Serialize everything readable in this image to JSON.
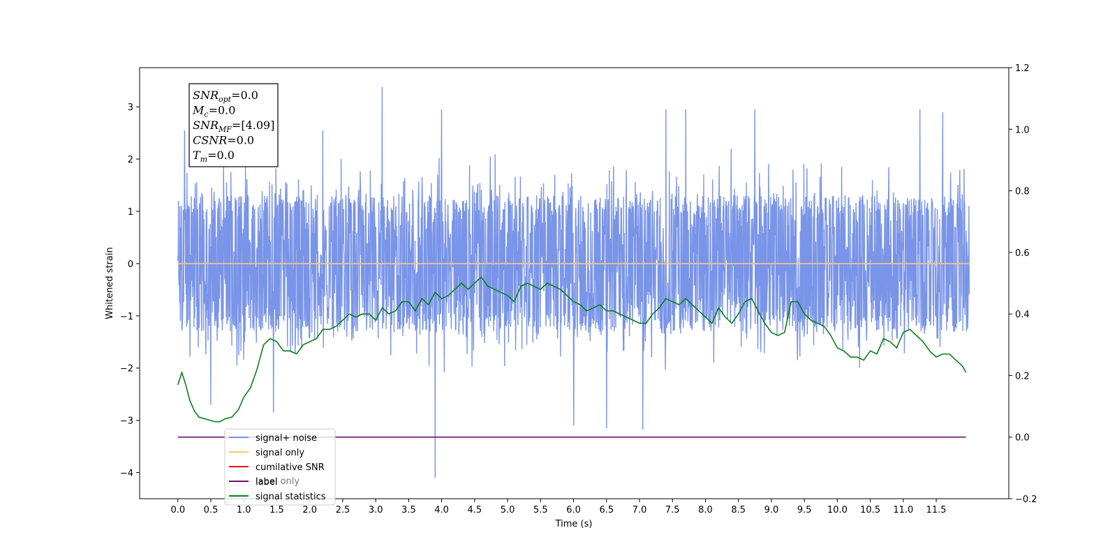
{
  "chart_data": {
    "type": "line",
    "title": "",
    "xlabel": "Time (s)",
    "ylabel": "Whitened strain",
    "xlim": [
      -0.58,
      12.6
    ],
    "ylim": [
      -4.5,
      3.75
    ],
    "y2lim": [
      -0.2,
      1.2
    ],
    "x_ticks": [
      "0.0",
      "0.5",
      "1.0",
      "1.5",
      "2.0",
      "2.5",
      "3.0",
      "3.5",
      "4.0",
      "4.5",
      "5.0",
      "5.5",
      "6.0",
      "6.5",
      "7.0",
      "7.5",
      "8.0",
      "8.5",
      "9.0",
      "9.5",
      "10.0",
      "10.5",
      "11.0",
      "11.5"
    ],
    "y_ticks": [
      "3",
      "2",
      "1",
      "0",
      "−1",
      "−2",
      "−3",
      "−4"
    ],
    "y2_ticks": [
      "1.2",
      "1.0",
      "0.8",
      "0.6",
      "0.4",
      "0.2",
      "0.0",
      "−0.2"
    ],
    "annotation": [
      {
        "var": "SNR",
        "sub": "opt",
        "value": "=0.0"
      },
      {
        "var": "M",
        "sub": "c",
        "value": "=0.0"
      },
      {
        "var": "SNR",
        "sub": "MF",
        "value": "=[4.09]"
      },
      {
        "var": "CSNR",
        "sub": "",
        "value": "=0.0"
      },
      {
        "var": "T",
        "sub": "m",
        "value": "=0.0"
      }
    ],
    "legend_position": "lower-left",
    "legend": [
      {
        "label": "signal+ noise",
        "color": "#7994e8"
      },
      {
        "label": "signal only",
        "color": "#ffc77a"
      },
      {
        "label": "cumilative SNR",
        "color": "#ff0000"
      },
      {
        "label": "label",
        "color": "#6a0f6e"
      },
      {
        "label": "signal statistics",
        "color": "#0a7f1a"
      }
    ],
    "hidden_legend_text": "label only",
    "series": [
      {
        "name": "signal+ noise",
        "axis": "left",
        "kind": "noise",
        "x_range": [
          0.0,
          12.0
        ],
        "band": [
          -1.3,
          1.3
        ],
        "extremes": [
          [
            0.1,
            2.55
          ],
          [
            0.5,
            -2.7
          ],
          [
            1.45,
            -2.85
          ],
          [
            2.2,
            2.55
          ],
          [
            3.1,
            3.38
          ],
          [
            3.9,
            -4.1
          ],
          [
            4.0,
            2.95
          ],
          [
            6.0,
            -3.1
          ],
          [
            6.5,
            -3.15
          ],
          [
            7.05,
            -3.18
          ],
          [
            7.4,
            2.95
          ],
          [
            7.7,
            2.95
          ],
          [
            8.75,
            2.95
          ],
          [
            11.25,
            2.95
          ],
          [
            11.6,
            2.9
          ]
        ],
        "color": "#7994e8"
      },
      {
        "name": "signal only",
        "axis": "left",
        "x": [
          0.0,
          12.0
        ],
        "y": [
          0.0,
          0.0
        ],
        "color": "#ffc77a"
      },
      {
        "name": "label",
        "axis": "right",
        "x": [
          0.0,
          11.95
        ],
        "y": [
          0.0,
          0.0
        ],
        "color": "#6a0f6e"
      },
      {
        "name": "signal statistics",
        "axis": "right",
        "color": "#0a7f1a",
        "x": [
          0.0,
          0.06,
          0.12,
          0.18,
          0.25,
          0.32,
          0.4,
          0.48,
          0.56,
          0.64,
          0.72,
          0.82,
          0.92,
          1.0,
          1.1,
          1.2,
          1.3,
          1.4,
          1.5,
          1.6,
          1.7,
          1.8,
          1.9,
          2.0,
          2.1,
          2.2,
          2.3,
          2.4,
          2.5,
          2.6,
          2.7,
          2.8,
          2.9,
          3.0,
          3.1,
          3.2,
          3.3,
          3.4,
          3.5,
          3.6,
          3.7,
          3.8,
          3.9,
          4.0,
          4.1,
          4.2,
          4.3,
          4.4,
          4.5,
          4.6,
          4.7,
          4.8,
          4.9,
          5.0,
          5.1,
          5.2,
          5.3,
          5.4,
          5.5,
          5.6,
          5.7,
          5.8,
          5.9,
          6.0,
          6.1,
          6.2,
          6.3,
          6.4,
          6.5,
          6.6,
          6.7,
          6.8,
          6.9,
          7.0,
          7.1,
          7.2,
          7.3,
          7.4,
          7.5,
          7.6,
          7.7,
          7.8,
          7.9,
          8.0,
          8.1,
          8.2,
          8.3,
          8.4,
          8.5,
          8.6,
          8.7,
          8.8,
          8.9,
          9.0,
          9.1,
          9.2,
          9.3,
          9.4,
          9.5,
          9.6,
          9.7,
          9.8,
          9.9,
          10.0,
          10.1,
          10.2,
          10.3,
          10.4,
          10.5,
          10.6,
          10.7,
          10.8,
          10.9,
          11.0,
          11.1,
          11.2,
          11.3,
          11.4,
          11.5,
          11.6,
          11.7,
          11.8,
          11.9,
          11.95
        ],
        "y": [
          0.17,
          0.21,
          0.17,
          0.12,
          0.085,
          0.065,
          0.06,
          0.055,
          0.05,
          0.05,
          0.06,
          0.065,
          0.09,
          0.13,
          0.16,
          0.22,
          0.3,
          0.32,
          0.31,
          0.28,
          0.28,
          0.27,
          0.3,
          0.31,
          0.32,
          0.35,
          0.35,
          0.36,
          0.38,
          0.4,
          0.39,
          0.4,
          0.4,
          0.38,
          0.42,
          0.4,
          0.41,
          0.44,
          0.44,
          0.41,
          0.45,
          0.43,
          0.47,
          0.45,
          0.46,
          0.48,
          0.5,
          0.48,
          0.5,
          0.52,
          0.49,
          0.48,
          0.47,
          0.46,
          0.44,
          0.49,
          0.5,
          0.49,
          0.48,
          0.5,
          0.49,
          0.48,
          0.46,
          0.44,
          0.43,
          0.41,
          0.42,
          0.43,
          0.41,
          0.41,
          0.4,
          0.39,
          0.38,
          0.37,
          0.37,
          0.4,
          0.42,
          0.45,
          0.44,
          0.43,
          0.45,
          0.43,
          0.41,
          0.39,
          0.37,
          0.42,
          0.39,
          0.37,
          0.4,
          0.44,
          0.45,
          0.41,
          0.37,
          0.34,
          0.33,
          0.34,
          0.44,
          0.44,
          0.4,
          0.38,
          0.37,
          0.36,
          0.33,
          0.29,
          0.28,
          0.26,
          0.26,
          0.25,
          0.28,
          0.27,
          0.32,
          0.31,
          0.29,
          0.34,
          0.35,
          0.33,
          0.31,
          0.28,
          0.26,
          0.27,
          0.27,
          0.25,
          0.23,
          0.21
        ]
      }
    ]
  }
}
